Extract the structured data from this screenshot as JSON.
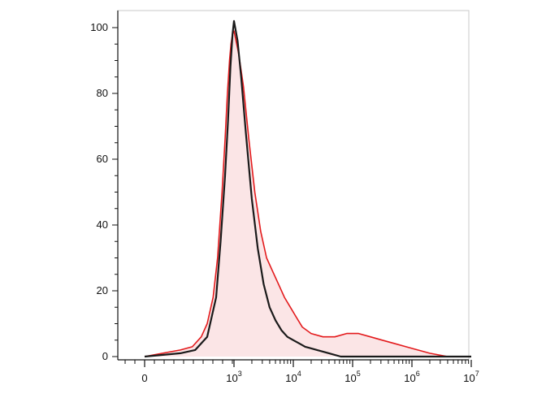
{
  "chart_data": {
    "type": "area",
    "title": "",
    "xlabel": "",
    "ylabel": "",
    "x_scale": "biexponential",
    "ylim": [
      0,
      100
    ],
    "grid": false,
    "legend": "none",
    "y_ticks": [
      {
        "value": 0,
        "label": "0"
      },
      {
        "value": 20,
        "label": "20"
      },
      {
        "value": 40,
        "label": "40"
      },
      {
        "value": 60,
        "label": "60"
      },
      {
        "value": 80,
        "label": "80"
      },
      {
        "value": 100,
        "label": "100"
      }
    ],
    "x_ticks": [
      {
        "value": 0,
        "base": "0",
        "exp": ""
      },
      {
        "value": 3,
        "base": "10",
        "exp": "3"
      },
      {
        "value": 4,
        "base": "10",
        "exp": "4"
      },
      {
        "value": 5,
        "base": "10",
        "exp": "5"
      },
      {
        "value": 6,
        "base": "10",
        "exp": "6"
      },
      {
        "value": 7,
        "base": "10",
        "exp": "7"
      }
    ],
    "series": [
      {
        "color": "#1a1a1a",
        "fill": false,
        "points": [
          [
            0,
            0
          ],
          [
            1.2,
            1
          ],
          [
            1.7,
            2
          ],
          [
            2.1,
            6
          ],
          [
            2.4,
            18
          ],
          [
            2.55,
            35
          ],
          [
            2.7,
            55
          ],
          [
            2.8,
            72
          ],
          [
            2.88,
            88
          ],
          [
            2.95,
            98
          ],
          [
            3.0,
            102
          ],
          [
            3.06,
            96
          ],
          [
            3.12,
            85
          ],
          [
            3.2,
            68
          ],
          [
            3.3,
            48
          ],
          [
            3.4,
            33
          ],
          [
            3.5,
            22
          ],
          [
            3.6,
            15
          ],
          [
            3.7,
            11
          ],
          [
            3.8,
            8
          ],
          [
            3.9,
            6
          ],
          [
            4.0,
            5
          ],
          [
            4.1,
            4
          ],
          [
            4.2,
            3
          ],
          [
            4.4,
            2
          ],
          [
            4.6,
            1
          ],
          [
            4.8,
            0
          ],
          [
            7.0,
            0
          ]
        ]
      },
      {
        "color": "#e31a1c",
        "fill": true,
        "fill_color": "#fbe5e6",
        "points": [
          [
            0,
            0
          ],
          [
            0.6,
            1
          ],
          [
            1.2,
            2
          ],
          [
            1.6,
            3
          ],
          [
            1.9,
            6
          ],
          [
            2.1,
            10
          ],
          [
            2.3,
            18
          ],
          [
            2.45,
            30
          ],
          [
            2.6,
            50
          ],
          [
            2.7,
            66
          ],
          [
            2.78,
            80
          ],
          [
            2.85,
            90
          ],
          [
            2.9,
            95
          ],
          [
            2.95,
            98
          ],
          [
            3.0,
            99
          ],
          [
            3.08,
            92
          ],
          [
            3.16,
            82
          ],
          [
            3.25,
            66
          ],
          [
            3.35,
            50
          ],
          [
            3.45,
            38
          ],
          [
            3.55,
            30
          ],
          [
            3.65,
            26
          ],
          [
            3.75,
            22
          ],
          [
            3.85,
            18
          ],
          [
            3.95,
            15
          ],
          [
            4.05,
            12
          ],
          [
            4.15,
            9
          ],
          [
            4.3,
            7
          ],
          [
            4.5,
            6
          ],
          [
            4.7,
            6
          ],
          [
            4.9,
            7
          ],
          [
            5.1,
            7
          ],
          [
            5.3,
            6
          ],
          [
            5.5,
            5
          ],
          [
            5.7,
            4
          ],
          [
            5.9,
            3
          ],
          [
            6.1,
            2
          ],
          [
            6.3,
            1
          ],
          [
            6.6,
            0
          ],
          [
            7.0,
            0
          ]
        ]
      }
    ]
  }
}
